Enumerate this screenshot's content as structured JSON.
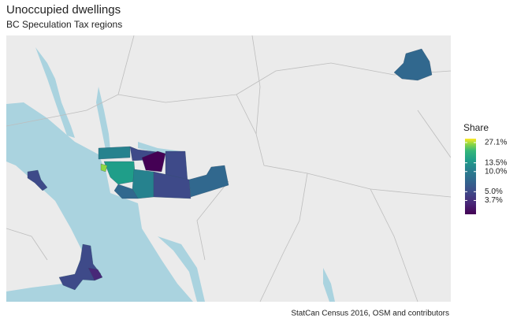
{
  "chart_data": {
    "type": "map",
    "title": "Unoccupied dwellings",
    "subtitle": "BC Speculation Tax regions",
    "caption": "StatCan Census 2016, OSM and contributors",
    "legend": {
      "title": "Share",
      "scale": "log",
      "lim": [
        2.3,
        31
      ],
      "ticks": [
        {
          "value": 3.7,
          "label": "3.7%"
        },
        {
          "value": 5.0,
          "label": "5.0%"
        },
        {
          "value": 10.0,
          "label": "10.0%"
        },
        {
          "value": 13.5,
          "label": "13.5%"
        },
        {
          "value": 27.1,
          "label": "27.1%"
        }
      ]
    }
  }
}
